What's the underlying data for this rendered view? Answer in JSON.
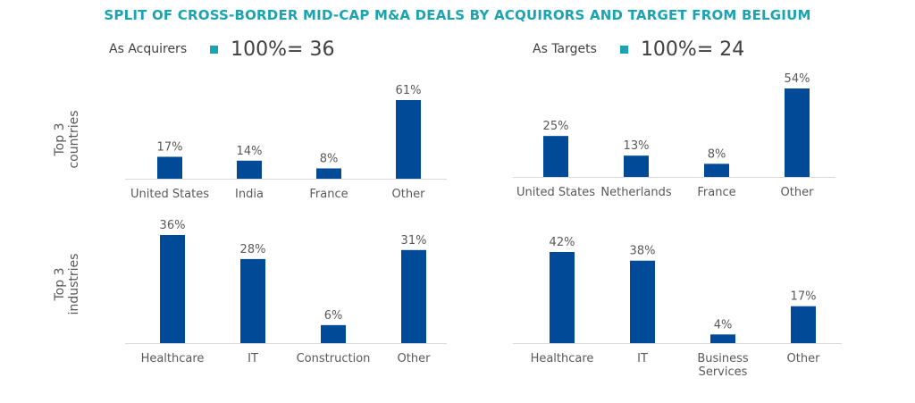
{
  "title": "SPLIT OF CROSS-BORDER MID-CAP M&A DEALS BY ACQUIRORS AND TARGET FROM BELGIUM",
  "acquirers": {
    "label": "As Acquirers",
    "total": "100%= 36"
  },
  "targets": {
    "label": "As Targets",
    "total": "100%= 24"
  },
  "row_labels": {
    "countries": [
      "Top 3",
      "countries"
    ],
    "industries": [
      "Top 3",
      "industries"
    ]
  },
  "colors": {
    "bar": "#004A98",
    "accent": "#1AA3B0"
  },
  "chart_data": [
    {
      "type": "bar",
      "title": "Acquirers - Top 3 countries",
      "categories": [
        "United States",
        "India",
        "France",
        "Other"
      ],
      "values": [
        17,
        14,
        8,
        61
      ],
      "labels": [
        "17%",
        "14%",
        "8%",
        "61%"
      ],
      "ylim": [
        0,
        61
      ]
    },
    {
      "type": "bar",
      "title": "Targets - Top 3 countries",
      "categories": [
        "United States",
        "Netherlands",
        "France",
        "Other"
      ],
      "values": [
        25,
        13,
        8,
        54
      ],
      "labels": [
        "25%",
        "13%",
        "8%",
        "54%"
      ],
      "ylim": [
        0,
        54
      ]
    },
    {
      "type": "bar",
      "title": "Acquirers - Top 3 industries",
      "categories": [
        "Healthcare",
        "IT",
        "Construction",
        "Other"
      ],
      "values": [
        36,
        28,
        6,
        31
      ],
      "labels": [
        "36%",
        "28%",
        "6%",
        "31%"
      ],
      "ylim": [
        0,
        36
      ]
    },
    {
      "type": "bar",
      "title": "Targets - Top 3 industries",
      "categories": [
        "Healthcare",
        "IT",
        "Business Services",
        "Other"
      ],
      "values": [
        42,
        38,
        4,
        17
      ],
      "labels": [
        "42%",
        "38%",
        "4%",
        "17%"
      ],
      "ylim": [
        0,
        42
      ]
    }
  ]
}
